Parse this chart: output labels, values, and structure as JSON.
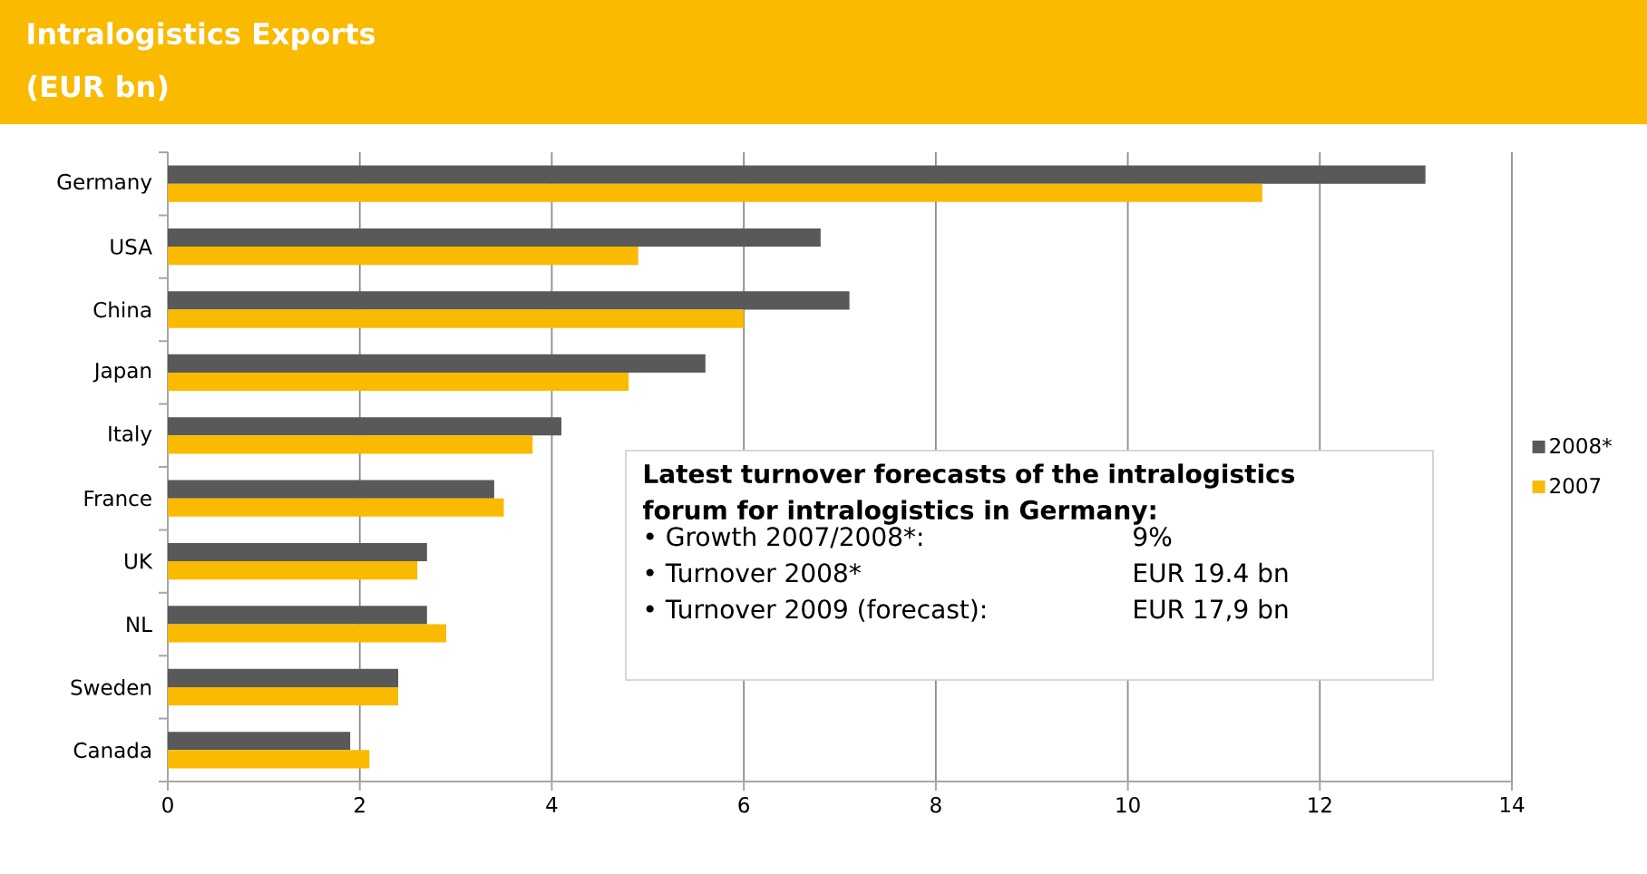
{
  "chart_data": {
    "type": "bar",
    "orientation": "horizontal",
    "title": "Intralogistics Exports",
    "subtitle": "(EUR bn)",
    "categories": [
      "Germany",
      "USA",
      "China",
      "Japan",
      "Italy",
      "France",
      "UK",
      "NL",
      "Sweden",
      "Canada"
    ],
    "series": [
      {
        "name": "2008*",
        "color": "#595959",
        "values": [
          13.1,
          6.8,
          7.1,
          5.6,
          4.1,
          3.4,
          2.7,
          2.7,
          2.4,
          1.9
        ]
      },
      {
        "name": "2007",
        "color": "#f9ba00",
        "values": [
          11.4,
          4.9,
          6.0,
          4.8,
          3.8,
          3.5,
          2.6,
          2.9,
          2.4,
          2.1
        ]
      }
    ],
    "xlim": [
      0,
      14
    ],
    "xticks": [
      0,
      2,
      4,
      6,
      8,
      10,
      12,
      14
    ],
    "grid": "x",
    "legend": "right",
    "annotations": [
      "Latest turnover forecasts of the intralogistics forum for intralogistics in Germany:",
      "• Growth 2007/2008*:",
      "9%",
      "• Turnover 2008*",
      "EUR 19.4 bn",
      "• Turnover 2009 (forecast):",
      "EUR 17,9 bn"
    ]
  }
}
